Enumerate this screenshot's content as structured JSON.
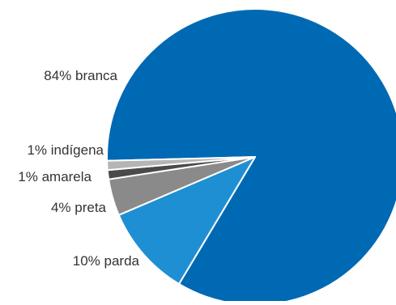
{
  "chart_data": {
    "type": "pie",
    "title": "",
    "slices": [
      {
        "category": "branca",
        "value": 84,
        "label": "84% branca",
        "color": "#0069b4"
      },
      {
        "category": "parda",
        "value": 10,
        "label": "10% parda",
        "color": "#1f8fd3"
      },
      {
        "category": "preta",
        "value": 4,
        "label": "4% preta",
        "color": "#8a8a8a"
      },
      {
        "category": "amarela",
        "value": 1,
        "label": "1% amarela",
        "color": "#4a4a4a"
      },
      {
        "category": "indígena",
        "value": 1,
        "label": "1% indígena",
        "color": "#b5b5b5"
      }
    ],
    "legend": "none",
    "background_color": "#ffffff",
    "label_color": "#333333"
  }
}
